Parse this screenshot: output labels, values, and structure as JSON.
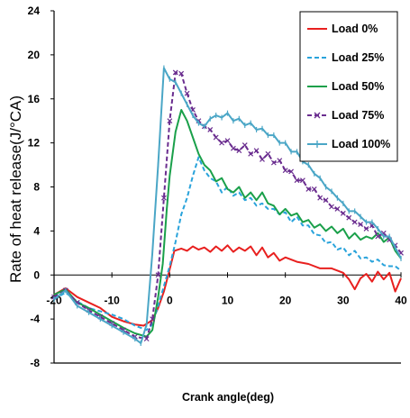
{
  "chart_data": {
    "type": "line",
    "title": "",
    "xlabel": "Crank angle(deg)",
    "ylabel": "Rate of  heat release(J/°CA)",
    "xlim": [
      -20,
      40
    ],
    "ylim": [
      -8,
      24
    ],
    "x_ticks": [
      "-20",
      "-10",
      "0",
      "10",
      "20",
      "30",
      "40"
    ],
    "y_ticks": [
      "-8",
      "-4",
      "0",
      "4",
      "8",
      "12",
      "16",
      "20",
      "24"
    ],
    "grid": false,
    "legend_position": "top-right",
    "series": [
      {
        "name": "Load 0%",
        "color": "#e8201f",
        "dash": "solid",
        "marker": "none",
        "points": [
          [
            -20,
            -1.8
          ],
          [
            -18,
            -1.2
          ],
          [
            -16,
            -2
          ],
          [
            -14,
            -2.5
          ],
          [
            -12,
            -3
          ],
          [
            -10,
            -3.8
          ],
          [
            -8,
            -4.2
          ],
          [
            -6,
            -4.5
          ],
          [
            -4.5,
            -4.6
          ],
          [
            -3,
            -4.1
          ],
          [
            -2,
            -3
          ],
          [
            -1,
            -1.5
          ],
          [
            0,
            0.5
          ],
          [
            0.8,
            2.2
          ],
          [
            2,
            2.4
          ],
          [
            3,
            2.2
          ],
          [
            4,
            2.6
          ],
          [
            5,
            2.3
          ],
          [
            6,
            2.5
          ],
          [
            7,
            2.1
          ],
          [
            8,
            2.6
          ],
          [
            9,
            2.2
          ],
          [
            10,
            2.7
          ],
          [
            11,
            2.1
          ],
          [
            12,
            2.5
          ],
          [
            13,
            2.2
          ],
          [
            14,
            2.6
          ],
          [
            15,
            1.8
          ],
          [
            16,
            2.5
          ],
          [
            17,
            1.6
          ],
          [
            18,
            2
          ],
          [
            19,
            1.3
          ],
          [
            20,
            1.6
          ],
          [
            22,
            1.2
          ],
          [
            24,
            1
          ],
          [
            26,
            0.6
          ],
          [
            28,
            0.6
          ],
          [
            30,
            0.2
          ],
          [
            31,
            -0.4
          ],
          [
            32,
            -1.3
          ],
          [
            33,
            -0.3
          ],
          [
            34,
            0.1
          ],
          [
            35,
            -0.6
          ],
          [
            36,
            0.3
          ],
          [
            37,
            -0.4
          ],
          [
            38,
            0.2
          ],
          [
            39,
            -1.5
          ],
          [
            40,
            -0.3
          ]
        ]
      },
      {
        "name": "Load 25%",
        "color": "#29a3db",
        "dash": "dash",
        "marker": "none",
        "points": [
          [
            -20,
            -2.2
          ],
          [
            -18,
            -1.6
          ],
          [
            -16,
            -2.4
          ],
          [
            -14,
            -3
          ],
          [
            -12,
            -3.3
          ],
          [
            -10,
            -3.6
          ],
          [
            -8,
            -4
          ],
          [
            -6,
            -4.6
          ],
          [
            -4,
            -5
          ],
          [
            -3,
            -4.5
          ],
          [
            -2,
            -2.8
          ],
          [
            -1,
            -1
          ],
          [
            0,
            0.8
          ],
          [
            1,
            3
          ],
          [
            2,
            5.5
          ],
          [
            3,
            7
          ],
          [
            4,
            9
          ],
          [
            5,
            10.7
          ],
          [
            6,
            9.5
          ],
          [
            7,
            8.8
          ],
          [
            8,
            8.5
          ],
          [
            9,
            7.5
          ],
          [
            10,
            8
          ],
          [
            11,
            7.2
          ],
          [
            12,
            7.5
          ],
          [
            13,
            6.8
          ],
          [
            14,
            7
          ],
          [
            15,
            6.3
          ],
          [
            16,
            6.5
          ],
          [
            17,
            6
          ],
          [
            18,
            6
          ],
          [
            19,
            5.5
          ],
          [
            20,
            5.7
          ],
          [
            21,
            4.8
          ],
          [
            22,
            5.3
          ],
          [
            23,
            4.5
          ],
          [
            24,
            4.5
          ],
          [
            25,
            3.7
          ],
          [
            26,
            3.6
          ],
          [
            27,
            2.9
          ],
          [
            28,
            3
          ],
          [
            29,
            2.3
          ],
          [
            30,
            2.5
          ],
          [
            31,
            1.8
          ],
          [
            32,
            2.2
          ],
          [
            33,
            1.5
          ],
          [
            34,
            1.6
          ],
          [
            35,
            1.2
          ],
          [
            36,
            1.4
          ],
          [
            37,
            0.9
          ],
          [
            38,
            0.8
          ],
          [
            39,
            0.8
          ],
          [
            40,
            0.4
          ]
        ]
      },
      {
        "name": "Load 50%",
        "color": "#1aa04a",
        "dash": "solid",
        "marker": "none",
        "points": [
          [
            -20,
            -1.8
          ],
          [
            -18,
            -1.3
          ],
          [
            -16,
            -2.5
          ],
          [
            -14,
            -3
          ],
          [
            -12,
            -3.6
          ],
          [
            -10,
            -4.2
          ],
          [
            -8,
            -4.8
          ],
          [
            -6,
            -5.3
          ],
          [
            -4,
            -5.6
          ],
          [
            -3,
            -5
          ],
          [
            -2,
            -2
          ],
          [
            -1.2,
            1
          ],
          [
            -0.5,
            6
          ],
          [
            0,
            9
          ],
          [
            1,
            13
          ],
          [
            2,
            15
          ],
          [
            3,
            14
          ],
          [
            4,
            12.5
          ],
          [
            5,
            11
          ],
          [
            6,
            10
          ],
          [
            7,
            9.5
          ],
          [
            8,
            8.5
          ],
          [
            9,
            8.8
          ],
          [
            10,
            7.8
          ],
          [
            11,
            7.5
          ],
          [
            12,
            8
          ],
          [
            13,
            7
          ],
          [
            14,
            7.5
          ],
          [
            15,
            6.8
          ],
          [
            16,
            7.5
          ],
          [
            17,
            6.5
          ],
          [
            18,
            6.3
          ],
          [
            19,
            5.5
          ],
          [
            20,
            6
          ],
          [
            21,
            5.4
          ],
          [
            22,
            5.6
          ],
          [
            23,
            4.8
          ],
          [
            24,
            5
          ],
          [
            25,
            4.3
          ],
          [
            26,
            4.6
          ],
          [
            27,
            4
          ],
          [
            28,
            4.4
          ],
          [
            29,
            3.8
          ],
          [
            30,
            4.2
          ],
          [
            31,
            3.3
          ],
          [
            32,
            3.8
          ],
          [
            33,
            3.2
          ],
          [
            34,
            3.5
          ],
          [
            35,
            3.3
          ],
          [
            36,
            3.8
          ],
          [
            37,
            3
          ],
          [
            38,
            3.4
          ],
          [
            39,
            2.2
          ],
          [
            40,
            1.5
          ]
        ]
      },
      {
        "name": "Load 75%",
        "color": "#6a2d8f",
        "dash": "dash",
        "marker": "x",
        "points": [
          [
            -20,
            -2
          ],
          [
            -18,
            -1.4
          ],
          [
            -16,
            -2.5
          ],
          [
            -14,
            -3.2
          ],
          [
            -12,
            -3.8
          ],
          [
            -10,
            -4.4
          ],
          [
            -8,
            -5
          ],
          [
            -6,
            -5.6
          ],
          [
            -4,
            -5.8
          ],
          [
            -3,
            -4
          ],
          [
            -2,
            0
          ],
          [
            -1,
            7
          ],
          [
            0,
            14
          ],
          [
            1,
            18.4
          ],
          [
            2,
            18.3
          ],
          [
            3,
            16.5
          ],
          [
            4,
            15
          ],
          [
            5,
            14
          ],
          [
            6,
            13.5
          ],
          [
            7,
            13.2
          ],
          [
            8,
            12.5
          ],
          [
            9,
            12
          ],
          [
            10,
            12.2
          ],
          [
            11,
            11.5
          ],
          [
            12,
            11.3
          ],
          [
            13,
            11.8
          ],
          [
            14,
            11
          ],
          [
            15,
            11.3
          ],
          [
            16,
            10.5
          ],
          [
            17,
            11
          ],
          [
            18,
            10.2
          ],
          [
            19,
            10.4
          ],
          [
            20,
            9.5
          ],
          [
            21,
            9.4
          ],
          [
            22,
            8.6
          ],
          [
            23,
            8.6
          ],
          [
            24,
            7.8
          ],
          [
            25,
            7.8
          ],
          [
            26,
            7
          ],
          [
            27,
            6.8
          ],
          [
            28,
            6.2
          ],
          [
            29,
            6
          ],
          [
            30,
            5.6
          ],
          [
            31,
            5.2
          ],
          [
            32,
            4.8
          ],
          [
            33,
            4.6
          ],
          [
            34,
            4.2
          ],
          [
            35,
            4.5
          ],
          [
            36,
            3.5
          ],
          [
            37,
            3.8
          ],
          [
            38,
            3.2
          ],
          [
            39,
            2.7
          ],
          [
            40,
            2
          ]
        ]
      },
      {
        "name": "Load 100%",
        "color": "#4aa6c6",
        "dash": "solid",
        "marker": "bar",
        "points": [
          [
            -20,
            -2.2
          ],
          [
            -18,
            -1.4
          ],
          [
            -16,
            -2.8
          ],
          [
            -14,
            -3.4
          ],
          [
            -12,
            -4
          ],
          [
            -10,
            -4.6
          ],
          [
            -8,
            -5.2
          ],
          [
            -6,
            -5.8
          ],
          [
            -5,
            -6.2
          ],
          [
            -4,
            -4.5
          ],
          [
            -3,
            2
          ],
          [
            -2,
            10
          ],
          [
            -1,
            18.8
          ],
          [
            0,
            17.8
          ],
          [
            1,
            17.5
          ],
          [
            2,
            16.5
          ],
          [
            3,
            15.5
          ],
          [
            4,
            14.5
          ],
          [
            5,
            13.8
          ],
          [
            6,
            13.5
          ],
          [
            7,
            14.2
          ],
          [
            8,
            14.5
          ],
          [
            9,
            14.3
          ],
          [
            10,
            14.7
          ],
          [
            11,
            14
          ],
          [
            12,
            14.2
          ],
          [
            13,
            13.6
          ],
          [
            14,
            13.8
          ],
          [
            15,
            13.2
          ],
          [
            16,
            13.3
          ],
          [
            17,
            12.7
          ],
          [
            18,
            12.7
          ],
          [
            19,
            12
          ],
          [
            20,
            12
          ],
          [
            21,
            11.2
          ],
          [
            22,
            11.2
          ],
          [
            23,
            10.3
          ],
          [
            24,
            10
          ],
          [
            25,
            9.2
          ],
          [
            26,
            8.8
          ],
          [
            27,
            8
          ],
          [
            28,
            7.6
          ],
          [
            29,
            7
          ],
          [
            30,
            6.5
          ],
          [
            31,
            5.8
          ],
          [
            32,
            5.8
          ],
          [
            33,
            5.3
          ],
          [
            34,
            4.8
          ],
          [
            35,
            4.8
          ],
          [
            36,
            4.2
          ],
          [
            37,
            3.5
          ],
          [
            38,
            3.5
          ],
          [
            39,
            2.5
          ],
          [
            40,
            1.5
          ]
        ]
      }
    ]
  }
}
